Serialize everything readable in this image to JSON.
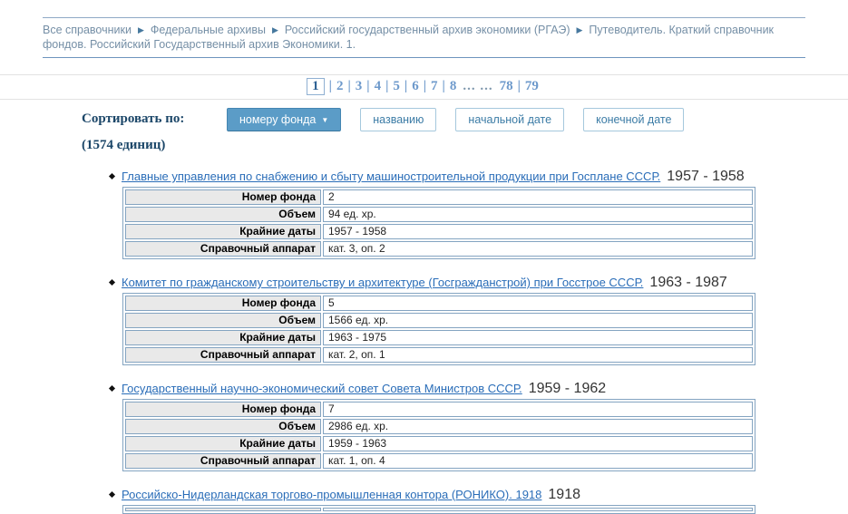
{
  "breadcrumb": {
    "separator": "▶",
    "items": [
      "Все справочники",
      "Федеральные архивы",
      "Российский государственный архив экономики (РГАЭ)",
      "Путеводитель. Краткий справочник фондов. Российский Государственный архив Экономики. 1."
    ]
  },
  "pagination": {
    "current": "1",
    "separator": "|",
    "ellipsis": "... ...",
    "pages": [
      "2",
      "3",
      "4",
      "5",
      "6",
      "7",
      "8"
    ],
    "last_pages": [
      "78",
      "79"
    ]
  },
  "sort": {
    "label": "Сортировать по:",
    "count": "(1574 единиц)",
    "buttons": [
      {
        "label": "номеру фонда",
        "arrow": "▼",
        "active": true
      },
      {
        "label": "названию",
        "active": false
      },
      {
        "label": "начальной дате",
        "active": false
      },
      {
        "label": "конечной дате",
        "active": false
      }
    ]
  },
  "items": [
    {
      "title": "Главные управления по снабжению и сбыту машиностроительной продукции при Госплане СССР.",
      "years": "1957 - 1958",
      "rows": [
        {
          "label": "Номер фонда",
          "value": "2"
        },
        {
          "label": "Объем",
          "value": "94 ед. хр."
        },
        {
          "label": "Крайние даты",
          "value": "1957 - 1958"
        },
        {
          "label": "Справочный аппарат",
          "value": "кат. 3, оп. 2"
        }
      ]
    },
    {
      "title": "Комитет по гражданскому строительству и архитектуре (Госгражданстрой) при Госстрое СССР.",
      "years": "1963 - 1987",
      "rows": [
        {
          "label": "Номер фонда",
          "value": "5"
        },
        {
          "label": "Объем",
          "value": "1566 ед. хр."
        },
        {
          "label": "Крайние даты",
          "value": "1963 - 1975"
        },
        {
          "label": "Справочный аппарат",
          "value": "кат. 2, оп. 1"
        }
      ]
    },
    {
      "title": "Государственный научно-экономический совет Совета Министров СССР.",
      "years": "1959 - 1962",
      "rows": [
        {
          "label": "Номер фонда",
          "value": "7"
        },
        {
          "label": "Объем",
          "value": "2986 ед. хр."
        },
        {
          "label": "Крайние даты",
          "value": "1959 - 1963"
        },
        {
          "label": "Справочный аппарат",
          "value": "кат. 1, оп. 4"
        }
      ]
    },
    {
      "title": "Российско-Нидерландская торгово-промышленная контора (РОНИКО). 1918",
      "years": "1918",
      "rows": []
    }
  ],
  "colors": {
    "link": "#2a6db8",
    "breadcrumb_text": "#758fa6",
    "active_button_bg": "#5b9cc7",
    "inactive_button_text": "#3c7ca6",
    "table_border": "#84a4c1",
    "label_cell_bg": "#e9e9e9",
    "heading_navy": "#1b4668",
    "pagination_link": "#6d99cb"
  }
}
